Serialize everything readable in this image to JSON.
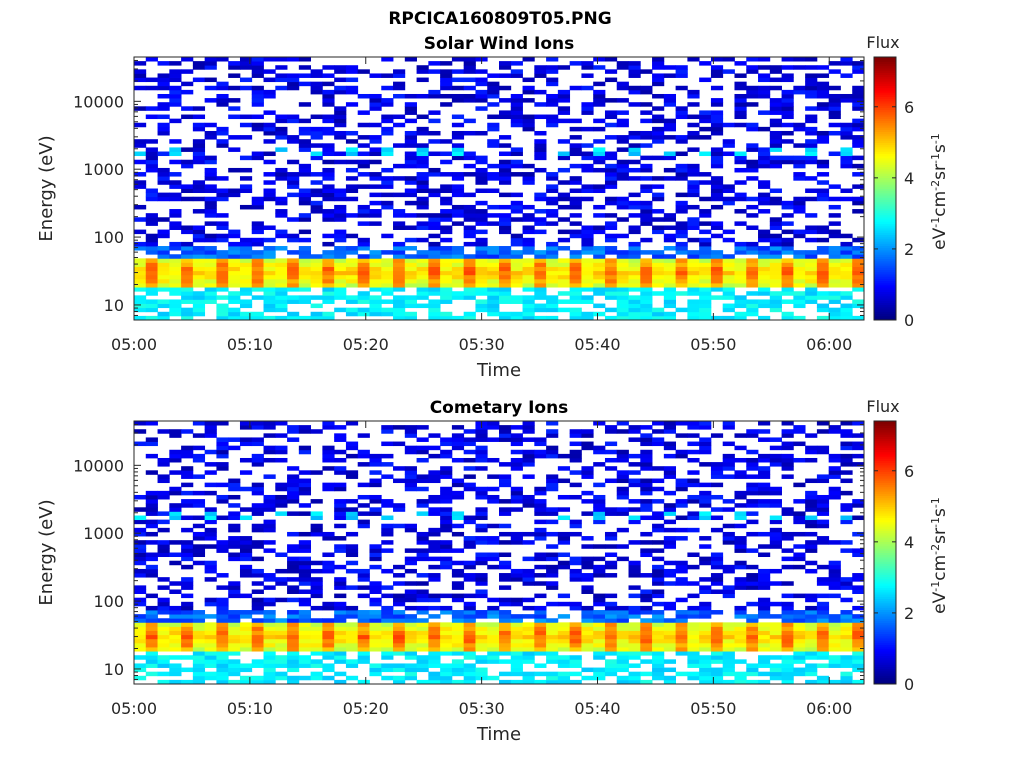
{
  "figure": {
    "title": "RPCICA160809T05.PNG"
  },
  "chart_data": [
    {
      "type": "heatmap",
      "title": "Solar Wind Ions",
      "xlabel": "Time",
      "ylabel": "Energy (eV)",
      "y_scale": "log",
      "ylim": [
        6,
        45000
      ],
      "xlim": [
        "05:00",
        "06:03"
      ],
      "x_ticks": [
        "05:00",
        "05:10",
        "05:20",
        "05:30",
        "05:40",
        "05:50",
        "06:00"
      ],
      "y_ticks": [
        "10",
        "100",
        "1000",
        "10000"
      ],
      "colorbar": {
        "title": "Flux",
        "label": "eV-1cm-2sr-1s-1",
        "range": [
          0,
          7.4
        ],
        "ticks": [
          "0",
          "2",
          "4",
          "6"
        ],
        "colormap": "jet"
      },
      "features": [
        {
          "band": "solar-wind ion peak",
          "energy_range_eV": [
            18,
            50
          ],
          "flux_level": [
            4,
            5.5
          ]
        },
        {
          "band": "low-energy wings",
          "energy_range_eV": [
            6,
            18
          ],
          "flux_level": [
            2,
            3
          ]
        },
        {
          "band": "high-energy flecks",
          "energy_range_eV": [
            1500,
            2000
          ],
          "flux_level": [
            2,
            2.8
          ]
        },
        {
          "band": "background noise",
          "energy_range_eV": [
            50,
            45000
          ],
          "flux_level": [
            0.3,
            1.2
          ]
        }
      ],
      "n_time_bins": 62,
      "n_energy_bins": 64
    },
    {
      "type": "heatmap",
      "title": "Cometary Ions",
      "xlabel": "Time",
      "ylabel": "Energy (eV)",
      "y_scale": "log",
      "ylim": [
        6,
        45000
      ],
      "xlim": [
        "05:00",
        "06:03"
      ],
      "x_ticks": [
        "05:00",
        "05:10",
        "05:20",
        "05:30",
        "05:40",
        "05:50",
        "06:00"
      ],
      "y_ticks": [
        "10",
        "100",
        "1000",
        "10000"
      ],
      "colorbar": {
        "title": "Flux",
        "label": "eV-1cm-2sr-1s-1",
        "range": [
          0,
          7.4
        ],
        "ticks": [
          "0",
          "2",
          "4",
          "6"
        ],
        "colormap": "jet"
      },
      "features": [
        {
          "band": "ion peak",
          "energy_range_eV": [
            18,
            50
          ],
          "flux_level": [
            4,
            5.5
          ]
        },
        {
          "band": "low-energy wings",
          "energy_range_eV": [
            6,
            18
          ],
          "flux_level": [
            2,
            3
          ]
        },
        {
          "band": "high-energy flecks",
          "energy_range_eV": [
            1500,
            2000
          ],
          "flux_level": [
            2,
            2.8
          ]
        },
        {
          "band": "background noise",
          "energy_range_eV": [
            50,
            45000
          ],
          "flux_level": [
            0.3,
            1.2
          ]
        }
      ],
      "n_time_bins": 62,
      "n_energy_bins": 64
    }
  ]
}
